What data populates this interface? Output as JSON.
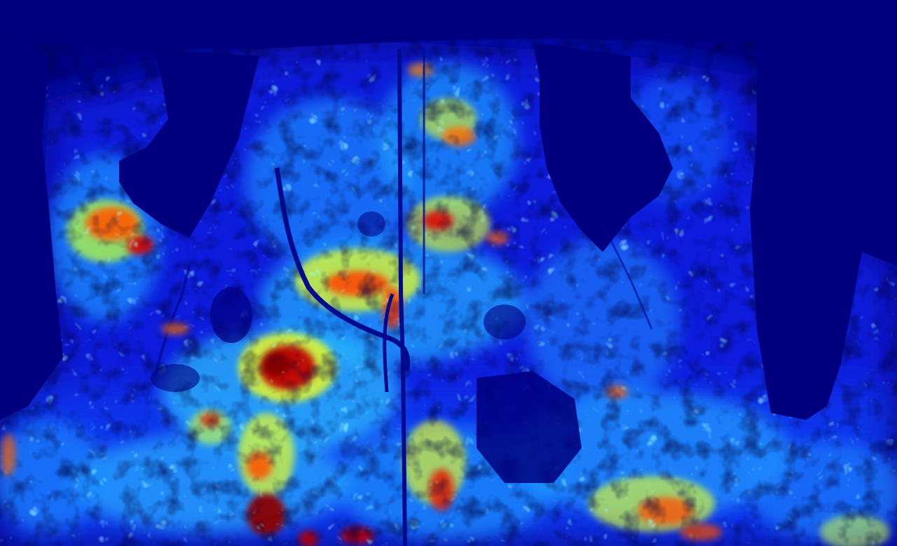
{
  "image": {
    "colormap": "jet",
    "colormap_stops": [
      "#00007f",
      "#0000ff",
      "#007fff",
      "#00ffff",
      "#7fff7f",
      "#ffff00",
      "#ff7f00",
      "#ff0000",
      "#7f0000"
    ],
    "background_color": "#000080",
    "description_tags": [
      "edge-magnitude-heatmap",
      "foliage-texture",
      "dark-silhouettes",
      "thin-vertical-lines"
    ]
  }
}
